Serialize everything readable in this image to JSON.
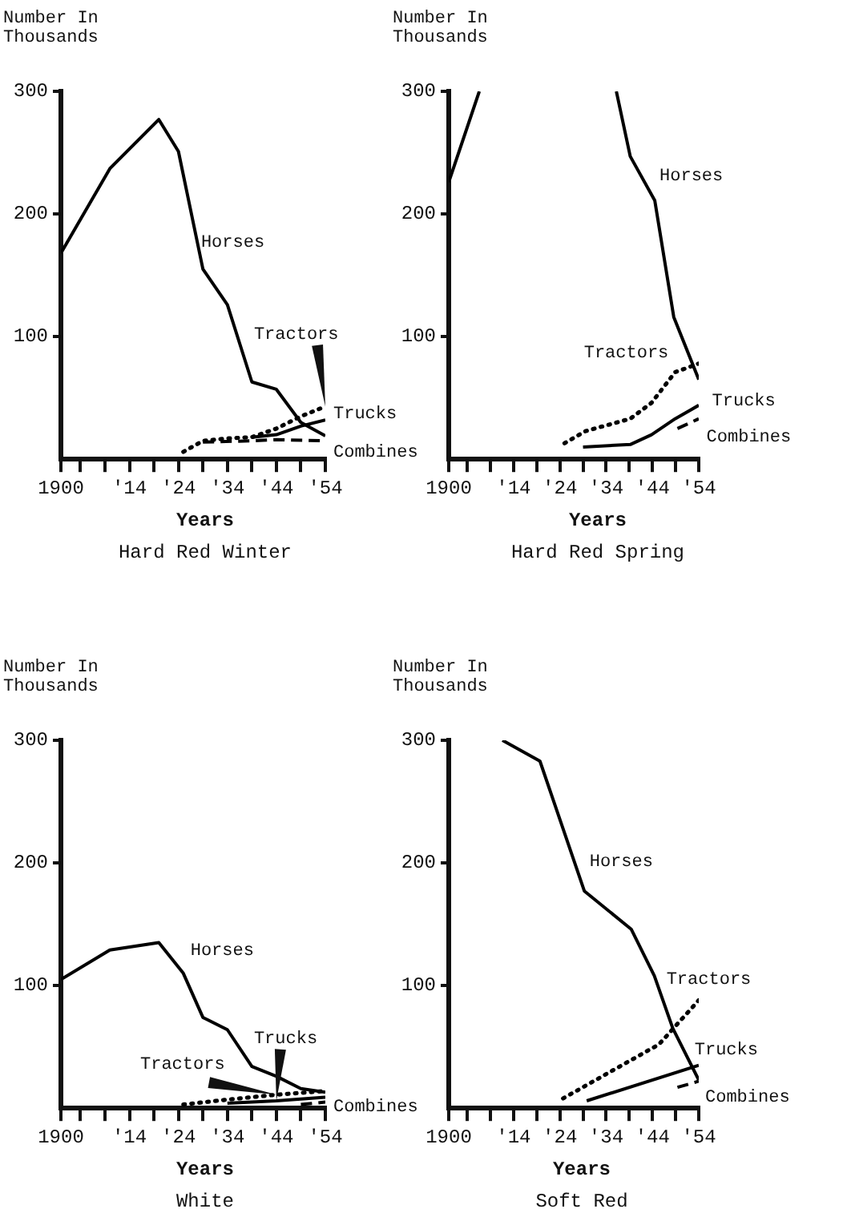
{
  "chart_data": [
    {
      "type": "line",
      "title": "Hard Red Winter",
      "xlabel": "Years",
      "ylabel": "Number In Thousands",
      "xlim": [
        1900,
        1954
      ],
      "xticks": [
        {
          "value": 1900,
          "label": "1900"
        },
        {
          "value": 1904,
          "label": null
        },
        {
          "value": 1909,
          "label": null
        },
        {
          "value": 1914,
          "label": "'14"
        },
        {
          "value": 1919,
          "label": null
        },
        {
          "value": 1924,
          "label": "'24"
        },
        {
          "value": 1929,
          "label": null
        },
        {
          "value": 1934,
          "label": "'34"
        },
        {
          "value": 1939,
          "label": null
        },
        {
          "value": 1944,
          "label": "'44"
        },
        {
          "value": 1949,
          "label": null
        },
        {
          "value": 1954,
          "label": "'54"
        }
      ],
      "ylim": [
        0,
        300
      ],
      "yticks": [
        100,
        200,
        300
      ],
      "grid": false,
      "legend": false,
      "marker": "none",
      "series": [
        {
          "name": "Horses",
          "color": "#000000",
          "line_style": "solid",
          "x": [
            1900,
            1910,
            1920,
            1924,
            1929,
            1934,
            1939,
            1944,
            1949,
            1954
          ],
          "values": [
            168,
            237,
            277,
            251,
            155,
            126,
            63,
            57,
            30,
            19
          ]
        },
        {
          "name": "Tractors",
          "color": "#000000",
          "line_style": "dotted",
          "x": [
            1925,
            1929,
            1934,
            1939,
            1944,
            1949,
            1954
          ],
          "values": [
            6,
            15,
            17,
            18,
            25,
            35,
            43
          ]
        },
        {
          "name": "Trucks",
          "color": "#000000",
          "line_style": "solid",
          "x": [
            1939,
            1944,
            1949,
            1954
          ],
          "values": [
            18,
            20,
            27,
            32
          ]
        },
        {
          "name": "Combines",
          "color": "#000000",
          "line_style": "dashed",
          "x": [
            1929,
            1939,
            1944,
            1954
          ],
          "values": [
            14,
            15,
            16,
            15
          ]
        }
      ]
    },
    {
      "type": "line",
      "title": "Hard Red Spring",
      "xlabel": "Years",
      "ylabel": "Number In Thousands",
      "xlim": [
        1900,
        1954
      ],
      "xticks": [
        {
          "value": 1900,
          "label": "1900"
        },
        {
          "value": 1904,
          "label": null
        },
        {
          "value": 1909,
          "label": null
        },
        {
          "value": 1914,
          "label": "'14"
        },
        {
          "value": 1919,
          "label": null
        },
        {
          "value": 1924,
          "label": "'24"
        },
        {
          "value": 1929,
          "label": null
        },
        {
          "value": 1934,
          "label": "'34"
        },
        {
          "value": 1939,
          "label": null
        },
        {
          "value": 1944,
          "label": "'44"
        },
        {
          "value": 1949,
          "label": null
        },
        {
          "value": 1954,
          "label": "'54"
        }
      ],
      "ylim": [
        0,
        300
      ],
      "yticks": [
        100,
        200,
        300
      ],
      "grid": false,
      "legend": false,
      "marker": "none",
      "series": [
        {
          "name": "Horses",
          "color": "#000000",
          "line_style": "solid",
          "x": [
            1900,
            1906.6,
            1920,
            1936.2,
            1939.2,
            1944.5,
            1948.6,
            1954
          ],
          "values": [
            226,
            300,
            null,
            300,
            247,
            211,
            116,
            65
          ]
        },
        {
          "name": "Tractors",
          "color": "#000000",
          "line_style": "dotted",
          "x": [
            1925,
            1929.6,
            1939.2,
            1943.8,
            1948.9,
            1954
          ],
          "values": [
            13,
            23,
            33,
            46,
            71,
            78
          ]
        },
        {
          "name": "Trucks",
          "color": "#000000",
          "line_style": "solid",
          "x": [
            1929,
            1939.2,
            1943.8,
            1948.9,
            1954
          ],
          "values": [
            10,
            12,
            20,
            33,
            44
          ]
        },
        {
          "name": "Combines",
          "color": "#000000",
          "line_style": "dashed",
          "x": [
            1949.4,
            1954
          ],
          "values": [
            25,
            33
          ]
        }
      ]
    },
    {
      "type": "line",
      "title": "White",
      "xlabel": "Years",
      "ylabel": "Number In Thousands",
      "xlim": [
        1900,
        1954
      ],
      "xticks": [
        {
          "value": 1900,
          "label": "1900"
        },
        {
          "value": 1904,
          "label": null
        },
        {
          "value": 1909,
          "label": null
        },
        {
          "value": 1914,
          "label": "'14"
        },
        {
          "value": 1919,
          "label": null
        },
        {
          "value": 1924,
          "label": "'24"
        },
        {
          "value": 1929,
          "label": null
        },
        {
          "value": 1934,
          "label": "'34"
        },
        {
          "value": 1939,
          "label": null
        },
        {
          "value": 1944,
          "label": "'44"
        },
        {
          "value": 1949,
          "label": null
        },
        {
          "value": 1954,
          "label": "'54"
        }
      ],
      "ylim": [
        0,
        300
      ],
      "yticks": [
        100,
        200,
        300
      ],
      "grid": false,
      "legend": false,
      "marker": "none",
      "series": [
        {
          "name": "Horses",
          "color": "#000000",
          "line_style": "solid",
          "x": [
            1900,
            1910,
            1920,
            1925,
            1929,
            1934,
            1939,
            1944,
            1949,
            1954
          ],
          "values": [
            105,
            129,
            135,
            110,
            74,
            64,
            34,
            26,
            16,
            13
          ]
        },
        {
          "name": "Tractors",
          "color": "#000000",
          "line_style": "dotted",
          "x": [
            1925,
            1934,
            1944,
            1954
          ],
          "values": [
            3,
            7,
            11,
            14
          ]
        },
        {
          "name": "Trucks",
          "color": "#000000",
          "line_style": "solid",
          "x": [
            1934,
            1944,
            1954
          ],
          "values": [
            4,
            6,
            9
          ]
        },
        {
          "name": "Combines",
          "color": "#000000",
          "line_style": "dashed",
          "x": [
            1949,
            1954
          ],
          "values": [
            3,
            5
          ]
        }
      ]
    },
    {
      "type": "line",
      "title": "Soft Red",
      "xlabel": "Years",
      "ylabel": "Number In Thousands",
      "xlim": [
        1900,
        1954
      ],
      "xticks": [
        {
          "value": 1900,
          "label": "1900"
        },
        {
          "value": 1904,
          "label": null
        },
        {
          "value": 1909,
          "label": null
        },
        {
          "value": 1914,
          "label": "'14"
        },
        {
          "value": 1919,
          "label": null
        },
        {
          "value": 1924,
          "label": "'24"
        },
        {
          "value": 1929,
          "label": null
        },
        {
          "value": 1934,
          "label": "'34"
        },
        {
          "value": 1939,
          "label": null
        },
        {
          "value": 1944,
          "label": "'44"
        },
        {
          "value": 1949,
          "label": null
        },
        {
          "value": 1954,
          "label": "'54"
        }
      ],
      "ylim": [
        0,
        300
      ],
      "yticks": [
        100,
        200,
        300
      ],
      "grid": false,
      "legend": false,
      "marker": "none",
      "series": [
        {
          "name": "Horses",
          "color": "#000000",
          "line_style": "solid",
          "x": [
            1911.6,
            1919.7,
            1929.3,
            1939.4,
            1944.4,
            1948.4,
            1954
          ],
          "values": [
            300,
            283,
            177,
            146,
            108,
            65,
            23
          ]
        },
        {
          "name": "Tractors",
          "color": "#000000",
          "line_style": "dotted",
          "x": [
            1924.7,
            1945.4,
            1954
          ],
          "values": [
            8,
            52,
            88
          ]
        },
        {
          "name": "Trucks",
          "color": "#000000",
          "line_style": "solid",
          "x": [
            1929.8,
            1954
          ],
          "values": [
            6,
            35
          ]
        },
        {
          "name": "Combines",
          "color": "#000000",
          "line_style": "dashed",
          "x": [
            1949.4,
            1954
          ],
          "values": [
            17,
            22
          ]
        }
      ]
    }
  ]
}
